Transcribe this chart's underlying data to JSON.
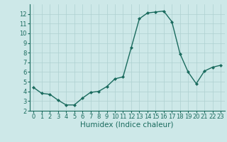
{
  "x": [
    0,
    1,
    2,
    3,
    4,
    5,
    6,
    7,
    8,
    9,
    10,
    11,
    12,
    13,
    14,
    15,
    16,
    17,
    18,
    19,
    20,
    21,
    22,
    23
  ],
  "y": [
    4.4,
    3.8,
    3.7,
    3.1,
    2.6,
    2.6,
    3.3,
    3.9,
    4.0,
    4.5,
    5.3,
    5.5,
    8.5,
    11.5,
    12.1,
    12.2,
    12.3,
    11.2,
    7.9,
    6.0,
    4.8,
    6.1,
    6.5,
    6.7
  ],
  "line_color": "#1a6b5e",
  "marker": "D",
  "marker_size": 2.0,
  "bg_color": "#cde8e8",
  "grid_color": "#aed0d0",
  "xlabel": "Humidex (Indice chaleur)",
  "ylim": [
    2,
    13
  ],
  "xlim": [
    -0.5,
    23.5
  ],
  "yticks": [
    2,
    3,
    4,
    5,
    6,
    7,
    8,
    9,
    10,
    11,
    12
  ],
  "xticks": [
    0,
    1,
    2,
    3,
    4,
    5,
    6,
    7,
    8,
    9,
    10,
    11,
    12,
    13,
    14,
    15,
    16,
    17,
    18,
    19,
    20,
    21,
    22,
    23
  ],
  "tick_fontsize": 6,
  "xlabel_fontsize": 7.5,
  "line_width": 1.0
}
